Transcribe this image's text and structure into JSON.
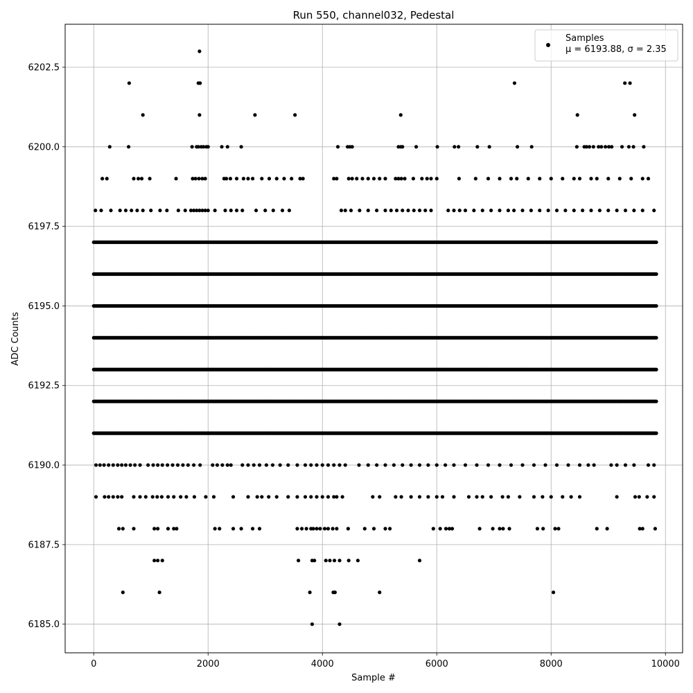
{
  "chart_data": {
    "type": "scatter",
    "title": "Run 550, channel032, Pedestal",
    "xlabel": "Sample #",
    "ylabel": "ADC Counts",
    "xlim": [
      -500,
      10300
    ],
    "ylim": [
      6184.1,
      6203.85
    ],
    "xticks": [
      0,
      2000,
      4000,
      6000,
      8000,
      10000
    ],
    "xtick_labels": [
      "0",
      "2000",
      "4000",
      "6000",
      "8000",
      "10000"
    ],
    "yticks": [
      6185.0,
      6187.5,
      6190.0,
      6192.5,
      6195.0,
      6197.5,
      6200.0,
      6202.5
    ],
    "ytick_labels": [
      "6185.0",
      "6187.5",
      "6190.0",
      "6192.5",
      "6195.0",
      "6197.5",
      "6200.0",
      "6202.5"
    ],
    "grid": true,
    "legend": {
      "placement": "top-right",
      "entries": [
        {
          "label": "Samples",
          "detail": "μ = 6193.88, σ = 2.35",
          "marker": "circle",
          "color": "#000000"
        }
      ]
    },
    "series": [
      {
        "name": "Samples",
        "color": "#000000",
        "marker": "circle",
        "n_samples": 9840,
        "mean": 6193.88,
        "sigma": 2.35,
        "levels": [
          {
            "y": 6203,
            "x": [
              1850
            ]
          },
          {
            "y": 6202,
            "x": [
              620,
              1830,
              1860,
              7360,
              9290,
              9380
            ]
          },
          {
            "y": 6201,
            "x": [
              860,
              1850,
              2820,
              3520,
              5370,
              8460,
              9460
            ]
          },
          {
            "y": 6200,
            "x": [
              280,
              610,
              1720,
              1800,
              1830,
              1880,
              1920,
              1970,
              2000,
              2240,
              2340,
              2580,
              4270,
              4440,
              4480,
              4520,
              5330,
              5370,
              5400,
              5640,
              6010,
              6310,
              6380,
              6710,
              6920,
              7410,
              7660,
              8450,
              8580,
              8620,
              8670,
              8740,
              8830,
              8880,
              8950,
              9010,
              9060,
              9240,
              9360,
              9440,
              9620
            ]
          },
          {
            "y": 6199,
            "x": [
              150,
              230,
              700,
              780,
              840,
              980,
              1440,
              1730,
              1780,
              1840,
              1900,
              1950,
              2280,
              2320,
              2390,
              2500,
              2620,
              2700,
              2780,
              2940,
              3070,
              3200,
              3330,
              3460,
              3610,
              3660,
              4200,
              4250,
              4460,
              4520,
              4600,
              4700,
              4800,
              4900,
              5000,
              5100,
              5280,
              5330,
              5380,
              5440,
              5590,
              5740,
              5830,
              5900,
              6000,
              6390,
              6680,
              6900,
              7100,
              7300,
              7400,
              7600,
              7800,
              8000,
              8200,
              8400,
              8500,
              8700,
              8800,
              9000,
              9200,
              9400,
              9600,
              9700
            ]
          },
          {
            "y": 6198,
            "x": [
              30,
              130,
              300,
              460,
              560,
              660,
              760,
              860,
              1000,
              1160,
              1280,
              1480,
              1600,
              1700,
              1750,
              1800,
              1850,
              1900,
              1950,
              2000,
              2120,
              2300,
              2400,
              2500,
              2600,
              2840,
              3000,
              3140,
              3300,
              3420,
              4330,
              4400,
              4500,
              4650,
              4800,
              4950,
              5100,
              5200,
              5300,
              5400,
              5500,
              5600,
              5700,
              5800,
              5900,
              6200,
              6300,
              6400,
              6500,
              6650,
              6800,
              6950,
              7100,
              7250,
              7350,
              7500,
              7650,
              7800,
              7950,
              8100,
              8250,
              8400,
              8550,
              8700,
              8850,
              9000,
              9150,
              9300,
              9450,
              9600,
              9800
            ]
          },
          {
            "y": 6197,
            "x": []
          },
          {
            "y": 6196,
            "x": []
          },
          {
            "y": 6195,
            "x": []
          },
          {
            "y": 6194,
            "x": []
          },
          {
            "y": 6193,
            "x": []
          },
          {
            "y": 6192,
            "x": []
          },
          {
            "y": 6191,
            "x": []
          },
          {
            "y": 6190,
            "x": [
              40,
              110,
              180,
              260,
              340,
              420,
              490,
              560,
              640,
              720,
              810,
              950,
              1040,
              1120,
              1200,
              1290,
              1380,
              1470,
              1560,
              1650,
              1750,
              1860,
              2080,
              2160,
              2250,
              2340,
              2400,
              2600,
              2700,
              2800,
              2900,
              3020,
              3130,
              3260,
              3400,
              3560,
              3700,
              3800,
              3900,
              4000,
              4100,
              4200,
              4300,
              4400,
              4640,
              4800,
              4950,
              5100,
              5250,
              5400,
              5550,
              5700,
              5850,
              6000,
              6150,
              6300,
              6500,
              6700,
              6900,
              7100,
              7300,
              7500,
              7700,
              7900,
              8100,
              8300,
              8500,
              8650,
              8750,
              9050,
              9150,
              9300,
              9450,
              9700,
              9800
            ]
          },
          {
            "y": 6189,
            "x": [
              40,
              190,
              260,
              340,
              420,
              490,
              700,
              810,
              910,
              1030,
              1110,
              1190,
              1300,
              1400,
              1520,
              1620,
              1760,
              1960,
              2100,
              2440,
              2700,
              2860,
              2940,
              3060,
              3200,
              3400,
              3560,
              3700,
              3800,
              3900,
              4000,
              4100,
              4200,
              4250,
              4350,
              4880,
              5000,
              5280,
              5380,
              5550,
              5700,
              5850,
              6000,
              6100,
              6300,
              6560,
              6700,
              6800,
              6950,
              7150,
              7250,
              7450,
              7700,
              7850,
              8000,
              8200,
              8350,
              8500,
              9150,
              9470,
              9540,
              9680,
              9800
            ]
          },
          {
            "y": 6188,
            "x": [
              440,
              510,
              700,
              1060,
              1120,
              1300,
              1400,
              1450,
              2120,
              2200,
              2440,
              2580,
              2780,
              2900,
              3560,
              3640,
              3720,
              3800,
              3840,
              3900,
              3960,
              4040,
              4100,
              4180,
              4250,
              4450,
              4740,
              4900,
              5100,
              5180,
              5940,
              6060,
              6160,
              6220,
              6270,
              6750,
              6980,
              7100,
              7160,
              7270,
              7760,
              7860,
              8070,
              8130,
              8800,
              8980,
              9550,
              9600,
              9820
            ]
          },
          {
            "y": 6187,
            "x": [
              1060,
              1120,
              1200,
              3580,
              3820,
              3860,
              4060,
              4130,
              4210,
              4300,
              4460,
              4620,
              5700
            ]
          },
          {
            "y": 6186,
            "x": [
              510,
              1150,
              3780,
              4190,
              4220,
              5000,
              8040
            ]
          },
          {
            "y": 6185,
            "x": [
              3820,
              4300
            ]
          }
        ]
      }
    ]
  }
}
